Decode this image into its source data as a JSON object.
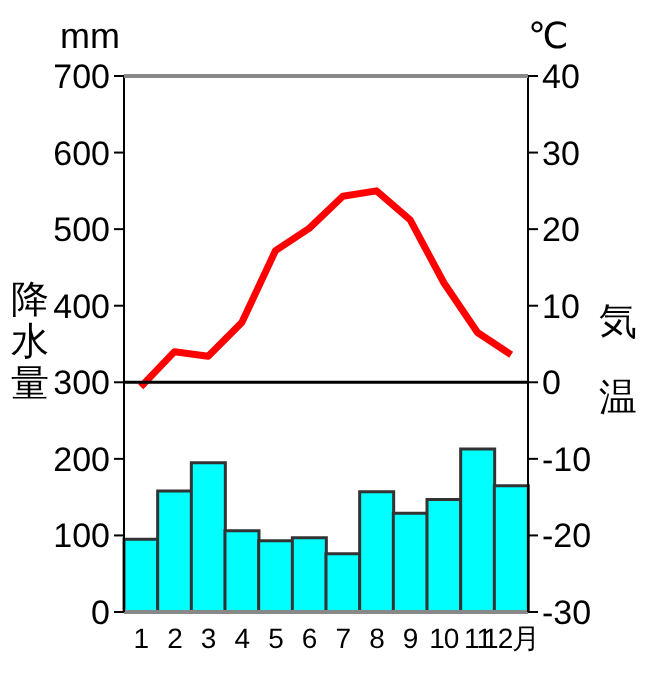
{
  "chart_data": {
    "type": "bar",
    "ylabel": "降水量",
    "y2label": "気温",
    "annotations": [
      "mm",
      "℃"
    ],
    "categories": [
      "1",
      "2",
      "3",
      "4",
      "5",
      "6",
      "7",
      "8",
      "9",
      "10",
      "11",
      "12月"
    ],
    "series": [
      {
        "color": "#00ffff",
        "values": [
          95,
          158,
          195,
          106,
          93,
          97,
          76,
          157,
          129,
          147,
          213,
          165
        ]
      },
      {
        "type": "line",
        "axis": "y2",
        "color": "#ff0000",
        "values": [
          -0.6,
          4.0,
          3.4,
          7.8,
          17.2,
          20.1,
          24.3,
          25.0,
          21.2,
          13.0,
          6.5,
          3.6
        ]
      }
    ],
    "ylim": [
      0,
      700
    ],
    "yticks": [
      0,
      100,
      200,
      300,
      400,
      500,
      600,
      700
    ],
    "y2lim": [
      -30,
      40
    ],
    "y2ticks": [
      -30,
      -20,
      -10,
      0,
      10,
      20,
      30,
      40
    ],
    "ref_lines": [
      {
        "axis": "y2",
        "value": 0,
        "color": "#000000"
      }
    ],
    "grid": false,
    "legend": false,
    "marker": "none",
    "line_style": "solid"
  }
}
